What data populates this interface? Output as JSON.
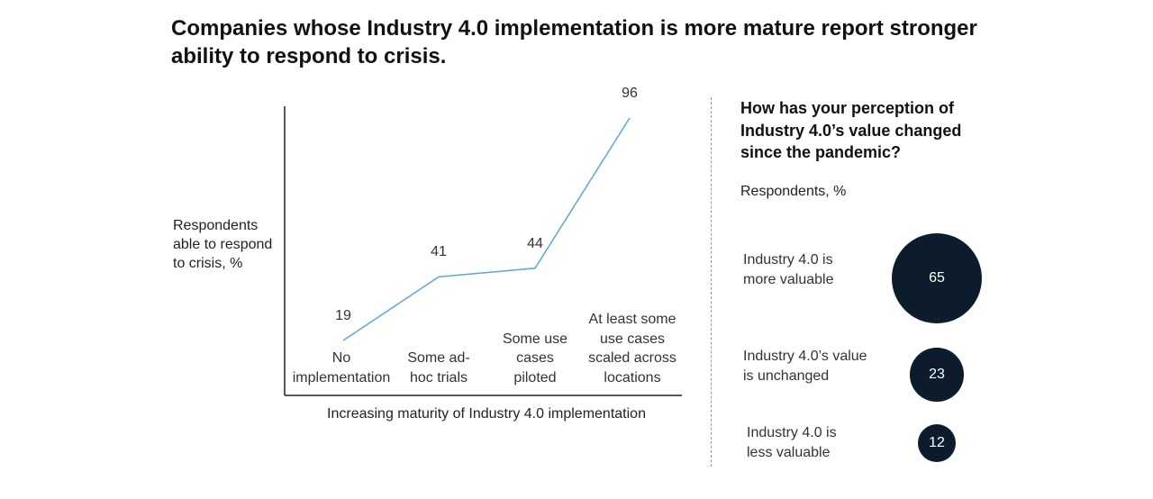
{
  "title": "Companies whose Industry 4.0 implementation is more mature report stronger\nability to respond to crisis.",
  "chart_data": [
    {
      "type": "line",
      "categories": [
        "No\nimplementation",
        "Some ad-\nhoc trials",
        "Some use\ncases\npiloted",
        "At least some\nuse cases\nscaled across\nlocations"
      ],
      "values": [
        19,
        41,
        44,
        96
      ],
      "value_labels": [
        "19",
        "41",
        "44",
        "96"
      ],
      "ylabel": "Respondents\nable to respond\nto crisis, %",
      "xlabel": "Increasing maturity of Industry 4.0 implementation",
      "ylim": [
        0,
        100
      ],
      "line_color": "#5aa7d9",
      "grid": false
    },
    {
      "type": "bubble",
      "title": "How has your perception of\nIndustry 4.0’s value changed\nsince the pandemic?",
      "subtitle": "Respondents, %",
      "categories": [
        "Industry 4.0 is\nmore valuable",
        "Industry 4.0’s value\nis unchanged",
        "Industry 4.0 is\nless valuable"
      ],
      "values": [
        65,
        23,
        12
      ],
      "value_labels": [
        "65",
        "23",
        "12"
      ],
      "bubble_color": "#0d1c2c"
    }
  ]
}
